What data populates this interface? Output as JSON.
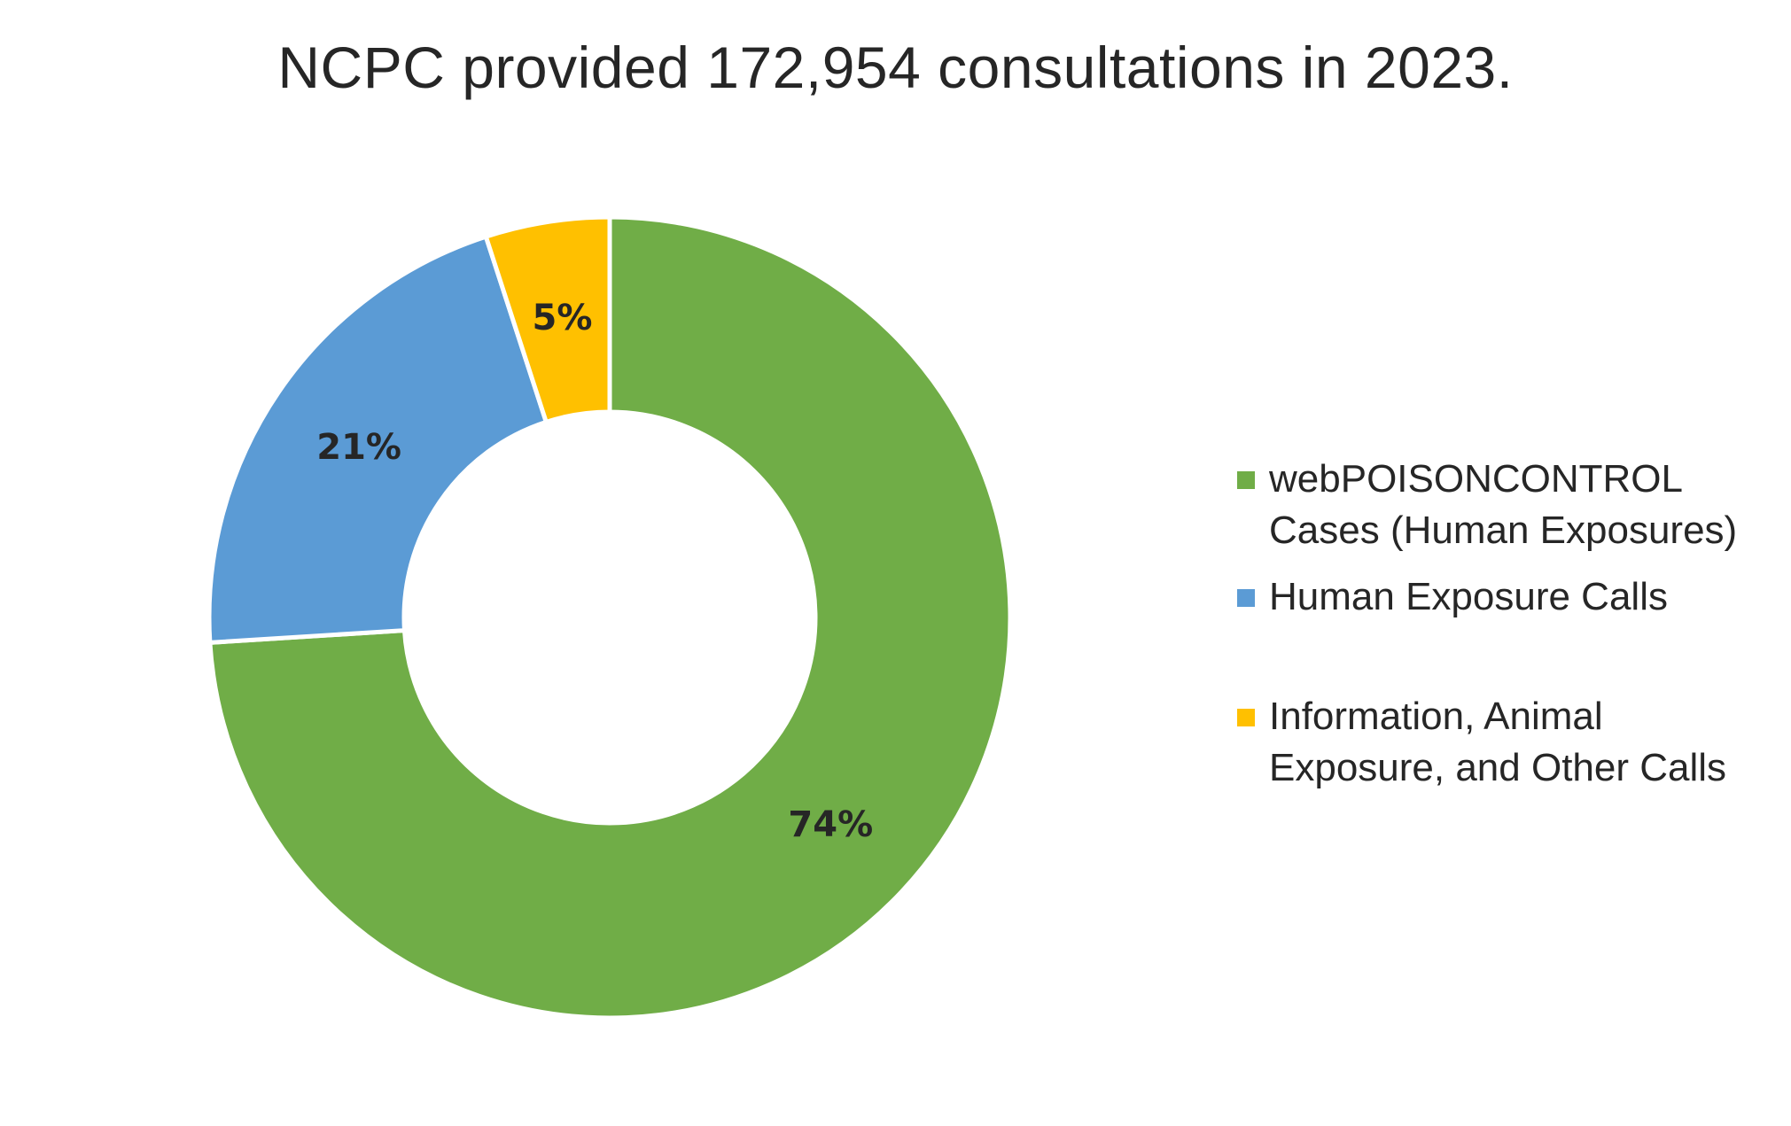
{
  "chart_data": {
    "type": "pie",
    "variant": "donut",
    "title": "NCPC provided 172,954 consultations in 2023.",
    "start_angle_deg": 0,
    "direction": "clockwise",
    "slices": [
      {
        "label_lines": [
          "webPOISONCONTROL",
          "Cases (Human Exposures)"
        ],
        "value": 74,
        "display": "74%",
        "color": "#70AD47"
      },
      {
        "label_lines": [
          "Human Exposure Calls"
        ],
        "value": 21,
        "display": "21%",
        "color": "#5B9BD5"
      },
      {
        "label_lines": [
          "Information, Animal",
          "Exposure, and Other Calls"
        ],
        "value": 5,
        "display": "5%",
        "color": "#FFC000"
      }
    ],
    "legend_position": "right",
    "separator_color": "#ffffff"
  }
}
